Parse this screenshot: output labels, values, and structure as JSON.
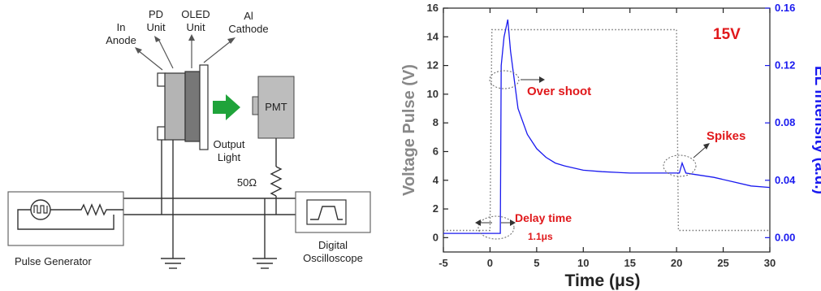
{
  "diagram": {
    "labels": {
      "in_anode": [
        "In",
        "Anode"
      ],
      "pd_unit": [
        "PD",
        "Unit"
      ],
      "oled_unit": [
        "OLED",
        "Unit"
      ],
      "al_cathode": [
        "Al",
        "Cathode"
      ],
      "output_light": [
        "Output",
        "Light"
      ],
      "pmt": "PMT",
      "resistor": "50Ω",
      "pulse_generator": "Pulse Generator",
      "oscilloscope": [
        "Digital",
        "Oscilloscope"
      ]
    },
    "colors": {
      "arrow": "#1fa33a",
      "oled": "#777777",
      "pd": "#b4b4b4",
      "pmt": "#bdbdbd"
    }
  },
  "chart_data": {
    "type": "line",
    "x_axis": {
      "label": "Time (μs)",
      "range": [
        -5,
        30
      ],
      "ticks": [
        "-5",
        "0",
        "5",
        "10",
        "15",
        "20",
        "25",
        "30"
      ]
    },
    "y_left": {
      "label": "Voltage Pulse (V)",
      "range": [
        -1,
        16
      ],
      "ticks": [
        "0",
        "2",
        "4",
        "6",
        "8",
        "10",
        "12",
        "14",
        "16"
      ],
      "color": "#888888"
    },
    "y_right": {
      "label": "EL intensity (a.u.)",
      "range": [
        -0.01,
        0.16
      ],
      "ticks": [
        "0.00",
        "0.04",
        "0.08",
        "0.12",
        "0.16"
      ],
      "color": "#1a1aef"
    },
    "series": [
      {
        "axis": "left",
        "style": "dotted",
        "color": "#777777",
        "points": [
          [
            -5,
            0.5
          ],
          [
            0,
            0.5
          ],
          [
            0.2,
            14.5
          ],
          [
            20,
            14.5
          ],
          [
            20.2,
            0.5
          ],
          [
            30,
            0.5
          ]
        ]
      },
      {
        "axis": "right",
        "style": "solid",
        "color": "#1a1aef",
        "points": [
          [
            -5,
            0.003
          ],
          [
            1.1,
            0.003
          ],
          [
            1.2,
            0.12
          ],
          [
            1.5,
            0.14
          ],
          [
            1.9,
            0.152
          ],
          [
            2.2,
            0.13
          ],
          [
            3,
            0.09
          ],
          [
            4,
            0.072
          ],
          [
            5,
            0.062
          ],
          [
            6,
            0.056
          ],
          [
            7,
            0.052
          ],
          [
            8,
            0.05
          ],
          [
            10,
            0.047
          ],
          [
            12,
            0.046
          ],
          [
            15,
            0.045
          ],
          [
            18,
            0.045
          ],
          [
            20.3,
            0.045
          ],
          [
            20.6,
            0.052
          ],
          [
            21,
            0.045
          ],
          [
            22,
            0.044
          ],
          [
            24,
            0.042
          ],
          [
            26,
            0.039
          ],
          [
            28,
            0.036
          ],
          [
            30,
            0.035
          ]
        ]
      }
    ],
    "annotations": {
      "voltage_tag": "15V",
      "over_shoot": "Over shoot",
      "spikes": "Spikes",
      "delay_time": "Delay time",
      "delay_value": "1.1μs"
    }
  }
}
